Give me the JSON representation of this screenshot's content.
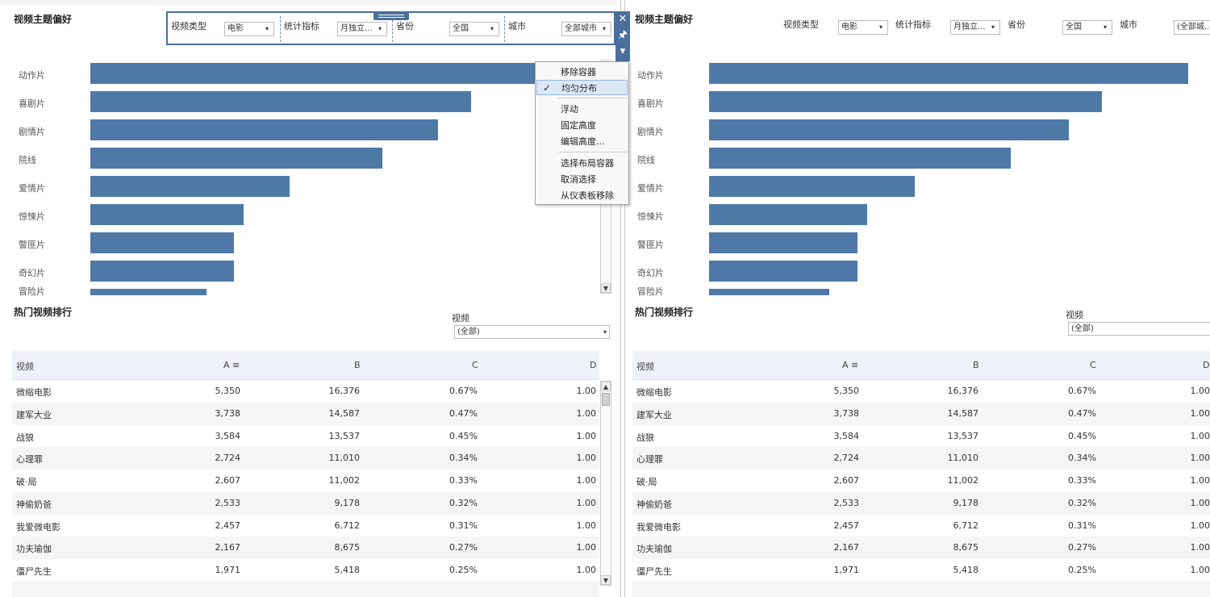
{
  "dashboard": {
    "theme_title": "视频主题偏好",
    "ranking_title": "热门视频排行"
  },
  "filters": {
    "video_type": {
      "label": "视频类型",
      "value": "电影"
    },
    "metric": {
      "label": "统计指标",
      "value": "月独立..."
    },
    "province": {
      "label": "省份",
      "value": "全国"
    },
    "city": {
      "label": "城市",
      "value": "全部城市",
      "value_right": "(全部城..."
    }
  },
  "context_menu": {
    "items": [
      "移除容器",
      "均匀分布",
      "浮动",
      "固定高度",
      "编辑高度...",
      "选择布局容器",
      "取消选择",
      "从仪表板移除"
    ],
    "checked_index": 1,
    "check_icon": "✓"
  },
  "icons": {
    "close": "✕",
    "pin": "🖈",
    "dropdown": "▾",
    "scroll_up": "▲",
    "scroll_down": "▼",
    "sort": "≡"
  },
  "video_filter": {
    "label": "视频",
    "value": "(全部)"
  },
  "table": {
    "columns": [
      "视频",
      "A",
      "B",
      "C",
      "D"
    ],
    "rows": [
      [
        "微缩电影",
        "5,350",
        "16,376",
        "0.67%",
        "1.00"
      ],
      [
        "建军大业",
        "3,738",
        "14,587",
        "0.47%",
        "1.00"
      ],
      [
        "战狼",
        "3,584",
        "13,537",
        "0.45%",
        "1.00"
      ],
      [
        "心理罪",
        "2,724",
        "11,010",
        "0.34%",
        "1.00"
      ],
      [
        "破·局",
        "2,607",
        "11,002",
        "0.33%",
        "1.00"
      ],
      [
        "神偷奶爸",
        "2,533",
        "9,178",
        "0.32%",
        "1.00"
      ],
      [
        "我爱微电影",
        "2,457",
        "6,712",
        "0.31%",
        "1.00"
      ],
      [
        "功夫瑜伽",
        "2,167",
        "8,675",
        "0.27%",
        "1.00"
      ],
      [
        "僵尸先生",
        "1,971",
        "5,418",
        "0.25%",
        "1.00"
      ]
    ]
  },
  "chart_data": {
    "type": "bar",
    "orientation": "horizontal",
    "categories": [
      "动作片",
      "喜剧片",
      "剧情片",
      "院线",
      "爱情片",
      "惊悚片",
      "警匪片",
      "奇幻片",
      "冒险片"
    ],
    "values": [
      100,
      82,
      75,
      63,
      43,
      33,
      31,
      31,
      25
    ],
    "color": "#4e79a7"
  }
}
